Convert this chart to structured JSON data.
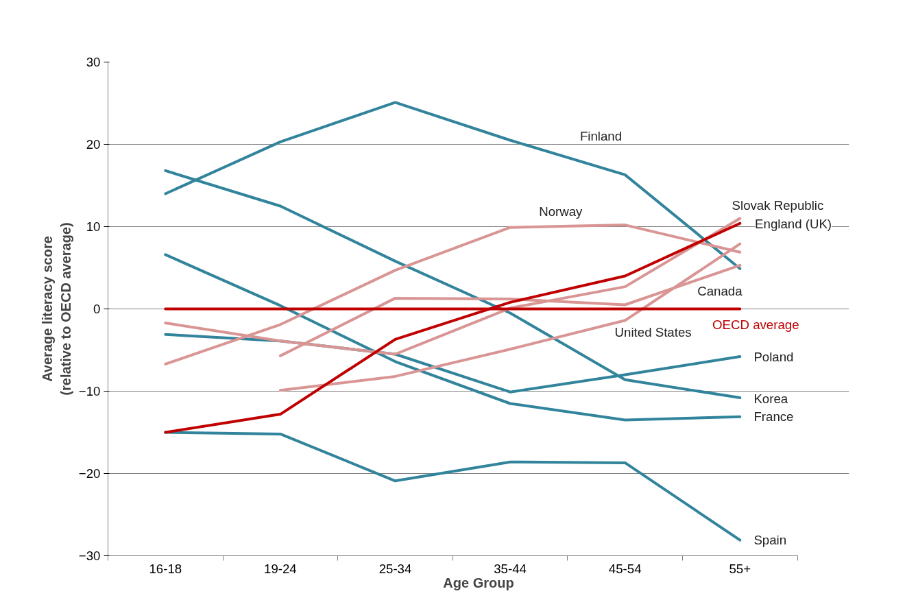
{
  "chart_data": {
    "type": "line",
    "xlabel": "Age Group",
    "ylabel": "Average literacy score\n(relative to OECD average)",
    "categories": [
      "16-18",
      "19-24",
      "25-34",
      "35-44",
      "45-54",
      "55+"
    ],
    "ylim": [
      -30,
      30
    ],
    "yticks": [
      -30,
      -20,
      -10,
      0,
      10,
      20,
      30
    ],
    "grid": "y",
    "legend": false,
    "marker": "none",
    "line_style": "solid",
    "series": [
      {
        "name": "Finland",
        "color": "#31849b",
        "values": [
          14,
          20.3,
          25.1,
          20.5,
          16.3,
          4.9
        ]
      },
      {
        "name": "Korea",
        "color": "#31849b",
        "values": [
          16.8,
          12.5,
          5.8,
          -0.5,
          -8.6,
          -10.8
        ]
      },
      {
        "name": "France",
        "color": "#31849b",
        "values": [
          6.6,
          0.4,
          -6.4,
          -11.5,
          -13.5,
          -13.1
        ]
      },
      {
        "name": "Poland",
        "color": "#31849b",
        "values": [
          -3.1,
          -3.9,
          -5.5,
          -10.1,
          -8.0,
          -5.8
        ]
      },
      {
        "name": "Spain",
        "color": "#31849b",
        "values": [
          -15,
          -15.2,
          -20.9,
          -18.6,
          -18.7,
          -28.1
        ]
      },
      {
        "name": "Norway",
        "color": "#d99594",
        "values": [
          -6.7,
          -1.9,
          4.7,
          9.9,
          10.2,
          6.9
        ]
      },
      {
        "name": "Slovak Republic",
        "color": "#d99594",
        "values": [
          -1.7,
          -3.9,
          -5.5,
          0.1,
          2.7,
          11.0
        ]
      },
      {
        "name": "Canada",
        "color": "#d99594",
        "values": [
          null,
          -5.7,
          1.3,
          1.2,
          0.5,
          5.3
        ]
      },
      {
        "name": "United States",
        "color": "#d99594",
        "values": [
          null,
          -9.9,
          -8.2,
          -4.9,
          -1.4,
          7.9
        ]
      },
      {
        "name": "England (UK)",
        "color": "#c00000",
        "values": [
          -15,
          -12.8,
          -3.7,
          0.8,
          4.0,
          10.4
        ]
      },
      {
        "name": "OECD average",
        "color": "#c00000",
        "values": [
          0,
          0,
          0,
          0,
          0,
          0
        ]
      }
    ]
  }
}
